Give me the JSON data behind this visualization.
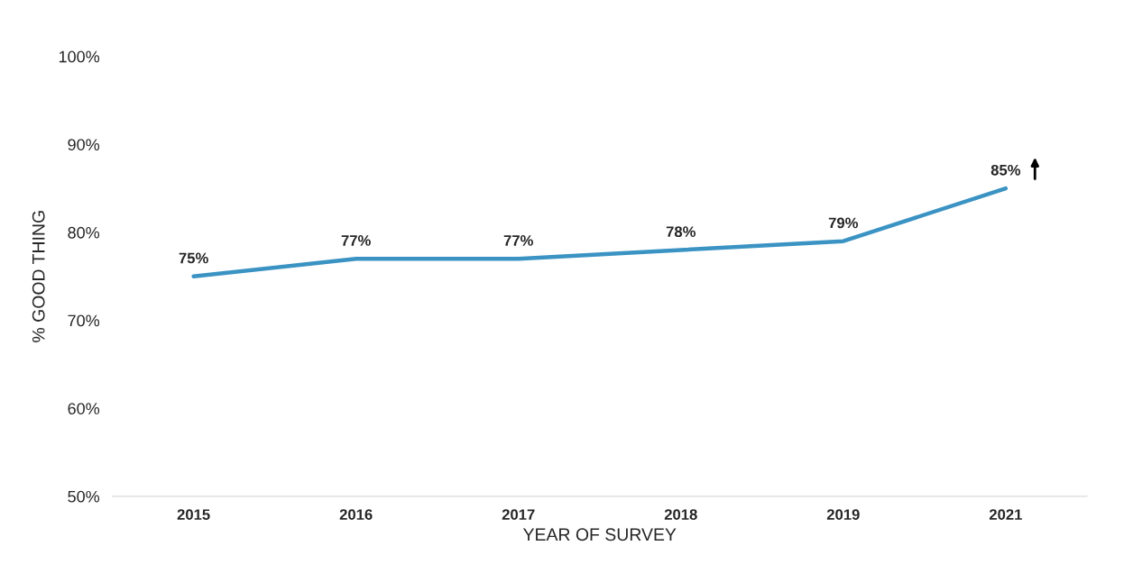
{
  "chart_data": {
    "type": "line",
    "xlabel": "YEAR OF SURVEY",
    "ylabel": "% GOOD THING",
    "categories": [
      "2015",
      "2016",
      "2017",
      "2018",
      "2019",
      "2021"
    ],
    "series": [
      {
        "color": "#3a93c3",
        "values": [
          75,
          77,
          77,
          78,
          79,
          85
        ],
        "value_labels": [
          "75%",
          "77%",
          "77%",
          "78%",
          "79%",
          "85%"
        ]
      }
    ],
    "ylim": [
      50,
      100
    ],
    "yticks": [
      {
        "value": 50,
        "label": "50%"
      },
      {
        "value": 60,
        "label": "60%"
      },
      {
        "value": 70,
        "label": "70%"
      },
      {
        "value": 80,
        "label": "80%"
      },
      {
        "value": 90,
        "label": "90%"
      },
      {
        "value": 100,
        "label": "100%"
      }
    ],
    "grid": false,
    "legend": false,
    "marker": "none",
    "line_style": "solid"
  }
}
